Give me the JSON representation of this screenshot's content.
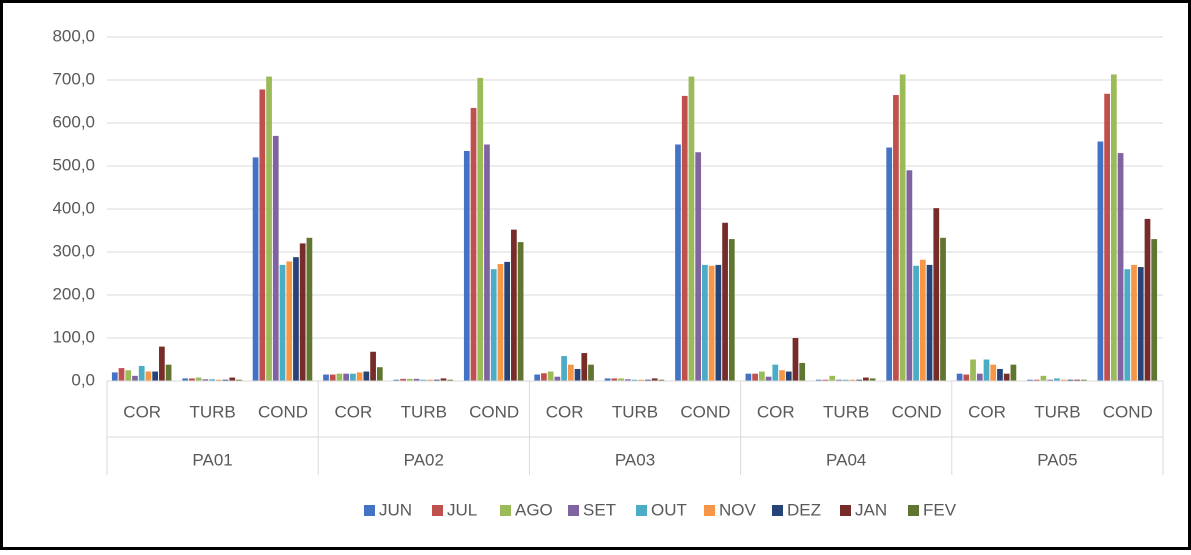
{
  "chart_data": {
    "type": "bar",
    "categories": [
      "COR",
      "TURB",
      "COND",
      "COR",
      "TURB",
      "COND",
      "COR",
      "TURB",
      "COND",
      "COR",
      "TURB",
      "COND",
      "COR",
      "TURB",
      "COND"
    ],
    "groups": [
      "PA01",
      "PA02",
      "PA03",
      "PA04",
      "PA05"
    ],
    "series": [
      {
        "name": "JUN",
        "color": "#4472c4",
        "values": [
          20,
          6,
          520,
          15,
          3,
          535,
          15,
          6,
          550,
          17,
          3,
          543,
          17,
          3,
          557
        ]
      },
      {
        "name": "JUL",
        "color": "#c0504d",
        "values": [
          30,
          6,
          678,
          15,
          5,
          635,
          18,
          6,
          663,
          17,
          3,
          665,
          15,
          3,
          668
        ]
      },
      {
        "name": "AGO",
        "color": "#9bbb59",
        "values": [
          25,
          8,
          708,
          17,
          5,
          705,
          22,
          6,
          708,
          22,
          12,
          713,
          50,
          12,
          713
        ]
      },
      {
        "name": "SET",
        "color": "#8064a2",
        "values": [
          12,
          4,
          570,
          17,
          5,
          550,
          10,
          4,
          532,
          10,
          3,
          490,
          17,
          3,
          530
        ]
      },
      {
        "name": "OUT",
        "color": "#4bacc6",
        "values": [
          35,
          4,
          270,
          17,
          3,
          260,
          58,
          3,
          270,
          38,
          3,
          268,
          50,
          6,
          260
        ]
      },
      {
        "name": "NOV",
        "color": "#f79646",
        "values": [
          22,
          3,
          278,
          20,
          3,
          272,
          38,
          3,
          268,
          25,
          3,
          282,
          38,
          3,
          270
        ]
      },
      {
        "name": "DEZ",
        "color": "#264478",
        "values": [
          22,
          3,
          288,
          22,
          3,
          277,
          28,
          3,
          270,
          22,
          3,
          270,
          28,
          3,
          265
        ]
      },
      {
        "name": "JAN",
        "color": "#772c2a",
        "values": [
          80,
          8,
          320,
          68,
          6,
          352,
          65,
          6,
          368,
          100,
          8,
          402,
          17,
          3,
          377
        ]
      },
      {
        "name": "FEV",
        "color": "#5f7530",
        "values": [
          38,
          3,
          333,
          32,
          3,
          323,
          38,
          3,
          330,
          42,
          6,
          333,
          38,
          3,
          330
        ]
      }
    ],
    "ylim": [
      0,
      800
    ],
    "yticks": [
      {
        "value": 0,
        "label": "0,0"
      },
      {
        "value": 100,
        "label": "100,0"
      },
      {
        "value": 200,
        "label": "200,0"
      },
      {
        "value": 300,
        "label": "300,0"
      },
      {
        "value": 400,
        "label": "400,0"
      },
      {
        "value": 500,
        "label": "500,0"
      },
      {
        "value": 600,
        "label": "600,0"
      },
      {
        "value": 700,
        "label": "700,0"
      },
      {
        "value": 800,
        "label": "800,0"
      }
    ],
    "grid": true,
    "legend": "bottom"
  }
}
